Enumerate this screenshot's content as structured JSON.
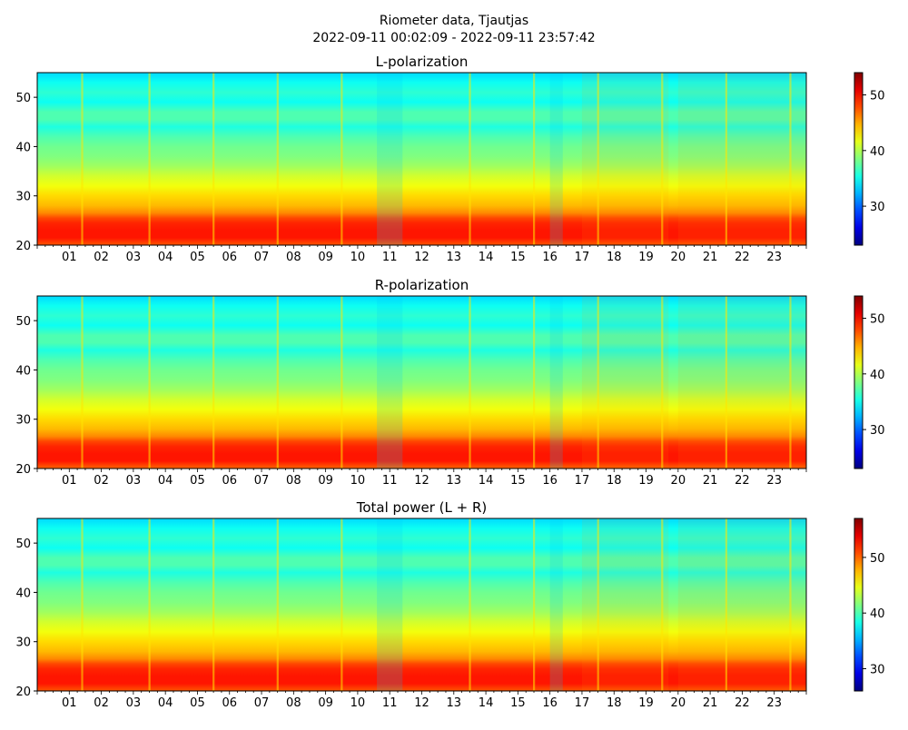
{
  "figure": {
    "title_line1": "Riometer data, Tjautjas",
    "title_line2": "2022-09-11 00:02:09 - 2022-09-11 23:57:42"
  },
  "colormap": "jet",
  "chart_data": [
    {
      "type": "heatmap",
      "title": "L-polarization",
      "xlabel": "",
      "ylabel": "",
      "xlim": [
        0,
        24
      ],
      "ylim": [
        20,
        55
      ],
      "xticks": [
        "01",
        "02",
        "03",
        "04",
        "05",
        "06",
        "07",
        "08",
        "09",
        "10",
        "11",
        "12",
        "13",
        "14",
        "15",
        "16",
        "17",
        "18",
        "19",
        "20",
        "21",
        "22",
        "23"
      ],
      "yticks": [
        20,
        30,
        40,
        50
      ],
      "colorbar": {
        "range": [
          23,
          54
        ],
        "ticks": [
          30,
          40,
          50
        ]
      },
      "frequency_profile": [
        {
          "y": 20.0,
          "value": 47.5
        },
        {
          "y": 21.5,
          "value": 49.5
        },
        {
          "y": 23.0,
          "value": 49.5
        },
        {
          "y": 24.5,
          "value": 49.0
        },
        {
          "y": 25.5,
          "value": 48.0
        },
        {
          "y": 26.5,
          "value": 46.0
        },
        {
          "y": 28.0,
          "value": 44.5
        },
        {
          "y": 30.0,
          "value": 43.5
        },
        {
          "y": 32.0,
          "value": 42.0
        },
        {
          "y": 34.0,
          "value": 41.0
        },
        {
          "y": 36.0,
          "value": 39.5
        },
        {
          "y": 38.0,
          "value": 38.5
        },
        {
          "y": 40.0,
          "value": 38.0
        },
        {
          "y": 42.0,
          "value": 37.0
        },
        {
          "y": 44.0,
          "value": 35.5
        },
        {
          "y": 45.5,
          "value": 37.0
        },
        {
          "y": 47.0,
          "value": 37.0
        },
        {
          "y": 49.0,
          "value": 35.0
        },
        {
          "y": 51.0,
          "value": 36.0
        },
        {
          "y": 53.0,
          "value": 35.0
        },
        {
          "y": 55.0,
          "value": 33.5
        }
      ],
      "spikes_hours": [
        1.4,
        3.5,
        5.5,
        7.5,
        9.5,
        13.5,
        15.5,
        17.5,
        19.5,
        21.5,
        23.5
      ],
      "bands": [
        {
          "start": 10.6,
          "end": 11.4,
          "delta": -1.5
        },
        {
          "start": 16.0,
          "end": 16.4,
          "delta": -1.5
        },
        {
          "start": 17.0,
          "end": 19.7,
          "delta": 0.8
        },
        {
          "start": 20.0,
          "end": 24.0,
          "delta": 0.8
        }
      ],
      "scale": 1.0
    },
    {
      "type": "heatmap",
      "title": "R-polarization",
      "xlabel": "",
      "ylabel": "",
      "xlim": [
        0,
        24
      ],
      "ylim": [
        20,
        55
      ],
      "xticks": [
        "01",
        "02",
        "03",
        "04",
        "05",
        "06",
        "07",
        "08",
        "09",
        "10",
        "11",
        "12",
        "13",
        "14",
        "15",
        "16",
        "17",
        "18",
        "19",
        "20",
        "21",
        "22",
        "23"
      ],
      "yticks": [
        20,
        30,
        40,
        50
      ],
      "colorbar": {
        "range": [
          23,
          54
        ],
        "ticks": [
          30,
          40,
          50
        ]
      },
      "frequency_profile": [
        {
          "y": 20.0,
          "value": 47.0
        },
        {
          "y": 21.5,
          "value": 49.5
        },
        {
          "y": 23.0,
          "value": 49.5
        },
        {
          "y": 24.5,
          "value": 49.0
        },
        {
          "y": 25.5,
          "value": 48.0
        },
        {
          "y": 26.5,
          "value": 46.0
        },
        {
          "y": 28.0,
          "value": 44.5
        },
        {
          "y": 30.0,
          "value": 43.5
        },
        {
          "y": 32.0,
          "value": 42.0
        },
        {
          "y": 34.0,
          "value": 41.0
        },
        {
          "y": 36.0,
          "value": 39.5
        },
        {
          "y": 38.0,
          "value": 38.5
        },
        {
          "y": 40.0,
          "value": 38.0
        },
        {
          "y": 42.0,
          "value": 37.0
        },
        {
          "y": 44.0,
          "value": 35.5
        },
        {
          "y": 45.5,
          "value": 37.0
        },
        {
          "y": 47.0,
          "value": 37.0
        },
        {
          "y": 49.0,
          "value": 35.0
        },
        {
          "y": 51.0,
          "value": 36.0
        },
        {
          "y": 53.0,
          "value": 35.0
        },
        {
          "y": 55.0,
          "value": 33.5
        }
      ],
      "spikes_hours": [
        1.4,
        3.5,
        5.5,
        7.5,
        9.5,
        13.5,
        15.5,
        17.5,
        19.5,
        21.5,
        23.5
      ],
      "bands": [
        {
          "start": 10.6,
          "end": 11.4,
          "delta": -1.5
        },
        {
          "start": 16.0,
          "end": 16.4,
          "delta": -1.5
        },
        {
          "start": 17.0,
          "end": 19.7,
          "delta": 0.8
        },
        {
          "start": 20.0,
          "end": 24.0,
          "delta": 0.8
        }
      ],
      "scale": 1.0
    },
    {
      "type": "heatmap",
      "title": "Total power (L + R)",
      "xlabel": "",
      "ylabel": "",
      "xlim": [
        0,
        24
      ],
      "ylim": [
        20,
        55
      ],
      "xticks": [
        "01",
        "02",
        "03",
        "04",
        "05",
        "06",
        "07",
        "08",
        "09",
        "10",
        "11",
        "12",
        "13",
        "14",
        "15",
        "16",
        "17",
        "18",
        "19",
        "20",
        "21",
        "22",
        "23"
      ],
      "yticks": [
        20,
        30,
        40,
        50
      ],
      "colorbar": {
        "range": [
          26,
          57
        ],
        "ticks": [
          30,
          40,
          50
        ]
      },
      "frequency_profile": [
        {
          "y": 20.0,
          "value": 50.5
        },
        {
          "y": 21.5,
          "value": 52.5
        },
        {
          "y": 23.0,
          "value": 52.5
        },
        {
          "y": 24.5,
          "value": 52.0
        },
        {
          "y": 25.5,
          "value": 51.0
        },
        {
          "y": 26.5,
          "value": 49.0
        },
        {
          "y": 28.0,
          "value": 47.5
        },
        {
          "y": 30.0,
          "value": 46.5
        },
        {
          "y": 32.0,
          "value": 45.0
        },
        {
          "y": 34.0,
          "value": 44.0
        },
        {
          "y": 36.0,
          "value": 42.5
        },
        {
          "y": 38.0,
          "value": 41.5
        },
        {
          "y": 40.0,
          "value": 41.0
        },
        {
          "y": 42.0,
          "value": 40.0
        },
        {
          "y": 44.0,
          "value": 38.5
        },
        {
          "y": 45.5,
          "value": 40.0
        },
        {
          "y": 47.0,
          "value": 40.0
        },
        {
          "y": 49.0,
          "value": 38.0
        },
        {
          "y": 51.0,
          "value": 39.0
        },
        {
          "y": 53.0,
          "value": 38.0
        },
        {
          "y": 55.0,
          "value": 36.5
        }
      ],
      "spikes_hours": [
        1.4,
        3.5,
        5.5,
        7.5,
        9.5,
        13.5,
        15.5,
        17.5,
        19.5,
        21.5,
        23.5
      ],
      "bands": [
        {
          "start": 10.6,
          "end": 11.4,
          "delta": -1.5
        },
        {
          "start": 16.0,
          "end": 16.4,
          "delta": -1.5
        },
        {
          "start": 17.0,
          "end": 19.7,
          "delta": 0.8
        },
        {
          "start": 20.0,
          "end": 24.0,
          "delta": 0.8
        }
      ],
      "scale": 1.0
    }
  ]
}
